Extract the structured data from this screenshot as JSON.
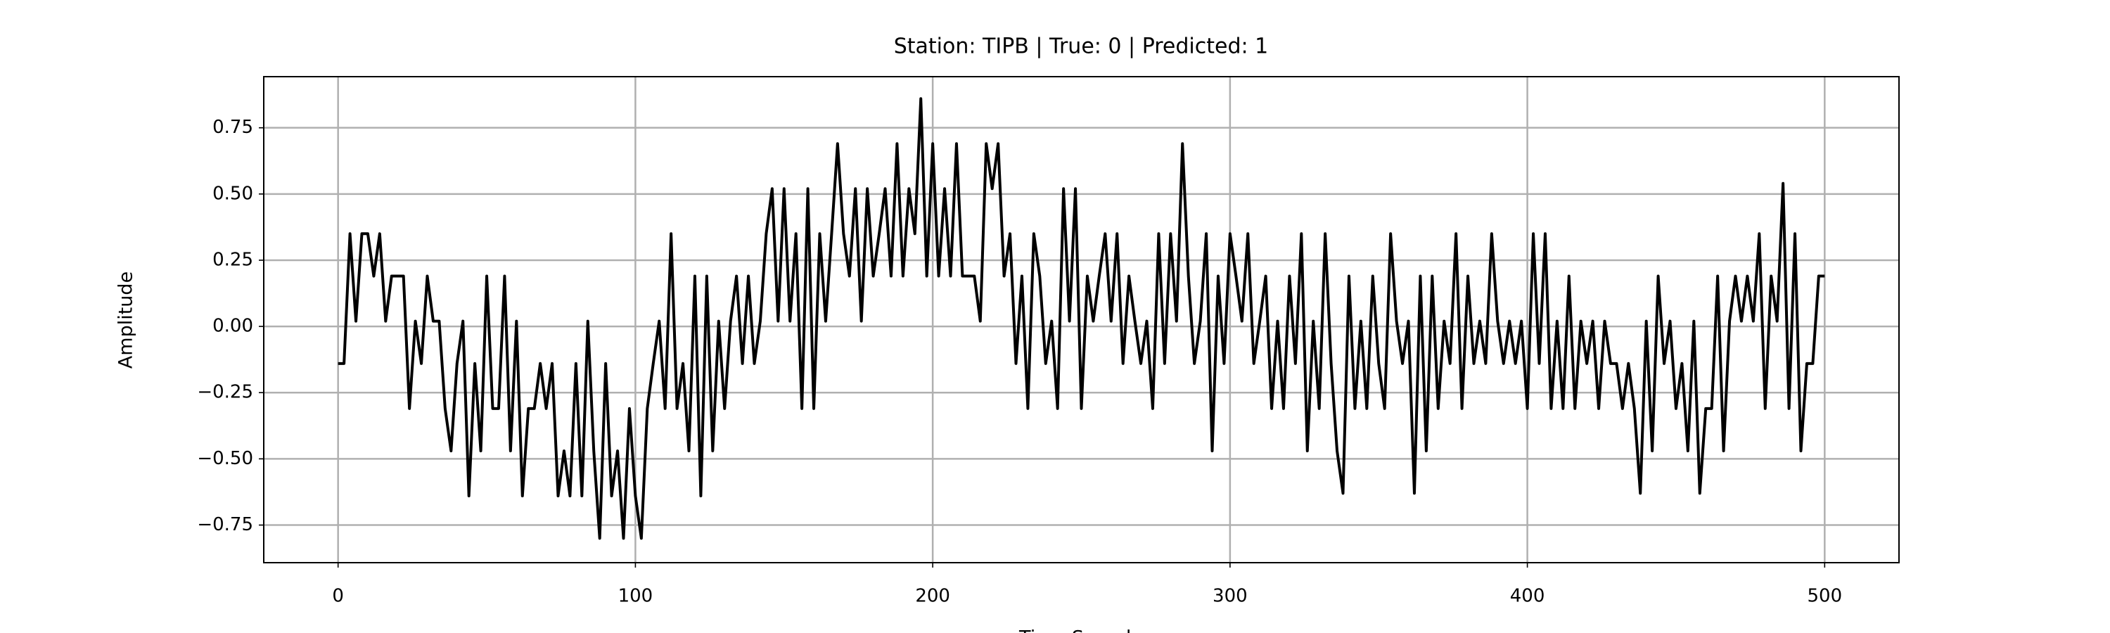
{
  "chart_data": {
    "type": "line",
    "title": "Station: TIPB | True: 0 | Predicted: 1",
    "xlabel": "Time Sample",
    "ylabel": "Amplitude",
    "grid": true,
    "xlim": [
      -25,
      525
    ],
    "ylim": [
      -0.892,
      0.943
    ],
    "xticks": [
      0,
      100,
      200,
      300,
      400,
      500
    ],
    "yticks": [
      {
        "value": -0.75,
        "label": "−0.75"
      },
      {
        "value": -0.5,
        "label": "−0.50"
      },
      {
        "value": -0.25,
        "label": "−0.25"
      },
      {
        "value": 0,
        "label": "0.00"
      },
      {
        "value": 0.25,
        "label": "0.25"
      },
      {
        "value": 0.5,
        "label": "0.50"
      },
      {
        "value": 0.75,
        "label": "0.75"
      }
    ],
    "x": [
      0,
      2,
      4,
      6,
      8,
      10,
      12,
      14,
      16,
      18,
      20,
      22,
      24,
      26,
      28,
      30,
      32,
      34,
      36,
      38,
      40,
      42,
      44,
      46,
      48,
      50,
      52,
      54,
      56,
      58,
      60,
      62,
      64,
      66,
      68,
      70,
      72,
      74,
      76,
      78,
      80,
      82,
      84,
      86,
      88,
      90,
      92,
      94,
      96,
      98,
      100,
      102,
      104,
      106,
      108,
      110,
      112,
      114,
      116,
      118,
      120,
      122,
      124,
      126,
      128,
      130,
      132,
      134,
      136,
      138,
      140,
      142,
      144,
      146,
      148,
      150,
      152,
      154,
      156,
      158,
      160,
      162,
      164,
      166,
      168,
      170,
      172,
      174,
      176,
      178,
      180,
      182,
      184,
      186,
      188,
      190,
      192,
      194,
      196,
      198,
      200,
      202,
      204,
      206,
      208,
      210,
      212,
      214,
      216,
      218,
      220,
      222,
      224,
      226,
      228,
      230,
      232,
      234,
      236,
      238,
      240,
      242,
      244,
      246,
      248,
      250,
      252,
      254,
      256,
      258,
      260,
      262,
      264,
      266,
      268,
      270,
      272,
      274,
      276,
      278,
      280,
      282,
      284,
      286,
      288,
      290,
      292,
      294,
      296,
      298,
      300,
      302,
      304,
      306,
      308,
      310,
      312,
      314,
      316,
      318,
      320,
      322,
      324,
      326,
      328,
      330,
      332,
      334,
      336,
      338,
      340,
      342,
      344,
      346,
      348,
      350,
      352,
      354,
      356,
      358,
      360,
      362,
      364,
      366,
      368,
      370,
      372,
      374,
      376,
      378,
      380,
      382,
      384,
      386,
      388,
      390,
      392,
      394,
      396,
      398,
      400,
      402,
      404,
      406,
      408,
      410,
      412,
      414,
      416,
      418,
      420,
      422,
      424,
      426,
      428,
      430,
      432,
      434,
      436,
      438,
      440,
      442,
      444,
      446,
      448,
      450,
      452,
      454,
      456,
      458,
      460,
      462,
      464,
      466,
      468,
      470,
      472,
      474,
      476,
      478,
      480,
      482,
      484,
      486,
      488,
      490,
      492,
      494,
      496,
      498,
      500
    ],
    "series": [
      {
        "color": "#000000",
        "values": [
          -0.14,
          -0.14,
          0.35,
          0.02,
          0.35,
          0.35,
          0.19,
          0.35,
          0.02,
          0.19,
          0.19,
          0.19,
          -0.31,
          0.02,
          -0.14,
          0.19,
          0.02,
          0.02,
          -0.31,
          -0.47,
          -0.14,
          0.02,
          -0.64,
          -0.14,
          -0.47,
          0.19,
          -0.31,
          -0.31,
          0.19,
          -0.47,
          0.02,
          -0.64,
          -0.31,
          -0.31,
          -0.14,
          -0.31,
          -0.14,
          -0.64,
          -0.47,
          -0.64,
          -0.14,
          -0.64,
          0.02,
          -0.47,
          -0.8,
          -0.14,
          -0.64,
          -0.47,
          -0.8,
          -0.31,
          -0.64,
          -0.8,
          -0.31,
          -0.14,
          0.02,
          -0.31,
          0.35,
          -0.31,
          -0.14,
          -0.47,
          0.19,
          -0.64,
          0.19,
          -0.47,
          0.02,
          -0.31,
          0.02,
          0.19,
          -0.14,
          0.19,
          -0.14,
          0.02,
          0.35,
          0.52,
          0.02,
          0.52,
          0.02,
          0.35,
          -0.31,
          0.52,
          -0.31,
          0.35,
          0.02,
          0.35,
          0.69,
          0.35,
          0.19,
          0.52,
          0.02,
          0.52,
          0.19,
          0.35,
          0.52,
          0.19,
          0.69,
          0.19,
          0.52,
          0.35,
          0.86,
          0.19,
          0.69,
          0.19,
          0.52,
          0.19,
          0.69,
          0.19,
          0.19,
          0.19,
          0.02,
          0.69,
          0.52,
          0.69,
          0.19,
          0.35,
          -0.14,
          0.19,
          -0.31,
          0.35,
          0.19,
          -0.14,
          0.02,
          -0.31,
          0.52,
          0.02,
          0.52,
          -0.31,
          0.19,
          0.02,
          0.19,
          0.35,
          0.02,
          0.35,
          -0.14,
          0.19,
          0.02,
          -0.14,
          0.02,
          -0.31,
          0.35,
          -0.14,
          0.35,
          0.02,
          0.69,
          0.19,
          -0.14,
          0.02,
          0.35,
          -0.47,
          0.19,
          -0.14,
          0.35,
          0.19,
          0.02,
          0.35,
          -0.14,
          0.02,
          0.19,
          -0.31,
          0.02,
          -0.31,
          0.19,
          -0.14,
          0.35,
          -0.47,
          0.02,
          -0.31,
          0.35,
          -0.14,
          -0.47,
          -0.63,
          0.19,
          -0.31,
          0.02,
          -0.31,
          0.19,
          -0.14,
          -0.31,
          0.35,
          0.02,
          -0.14,
          0.02,
          -0.63,
          0.19,
          -0.47,
          0.19,
          -0.31,
          0.02,
          -0.14,
          0.35,
          -0.31,
          0.19,
          -0.14,
          0.02,
          -0.14,
          0.35,
          0.02,
          -0.14,
          0.02,
          -0.14,
          0.02,
          -0.31,
          0.35,
          -0.14,
          0.35,
          -0.31,
          0.02,
          -0.31,
          0.19,
          -0.31,
          0.02,
          -0.14,
          0.02,
          -0.31,
          0.02,
          -0.14,
          -0.14,
          -0.31,
          -0.14,
          -0.31,
          -0.63,
          0.02,
          -0.47,
          0.19,
          -0.14,
          0.02,
          -0.31,
          -0.14,
          -0.47,
          0.02,
          -0.63,
          -0.31,
          -0.31,
          0.19,
          -0.47,
          0.02,
          0.19,
          0.02,
          0.19,
          0.02,
          0.35,
          -0.31,
          0.19,
          0.02,
          0.54,
          -0.31,
          0.35,
          -0.47,
          -0.14,
          -0.14,
          0.19,
          0.19
        ]
      }
    ]
  }
}
